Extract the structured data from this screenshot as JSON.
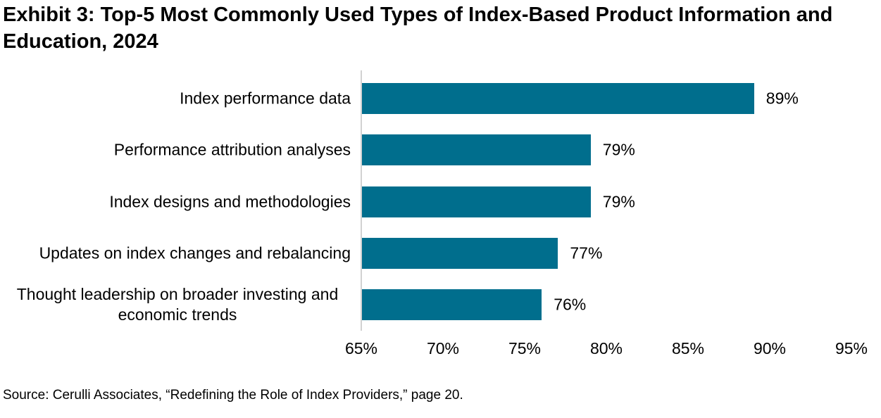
{
  "page": {
    "title": "Exhibit 3: Top-5 Most Commonly Used Types of Index-Based Product Information and Education, 2024",
    "source": "Source: Cerulli Associates, “Redefining the Role of Index Providers,” page 20."
  },
  "colors": {
    "bar": "#006e8d",
    "axis_line": "#d2d2d2",
    "text": "#000000",
    "background": "#ffffff"
  },
  "chart_data": {
    "type": "bar",
    "orientation": "horizontal",
    "title": "Exhibit 3: Top-5 Most Commonly Used Types of Index-Based Product Information and Education, 2024",
    "categories": [
      "Index performance data",
      "Performance attribution analyses",
      "Index designs and methodologies",
      "Updates on index changes and rebalancing",
      "Thought leadership on broader investing and economic trends"
    ],
    "values": [
      89,
      79,
      79,
      77,
      76
    ],
    "value_labels": [
      "89%",
      "79%",
      "79%",
      "77%",
      "76%"
    ],
    "xlabel": "",
    "ylabel": "",
    "xlim": [
      65,
      95
    ],
    "x_tick_values": [
      65,
      70,
      75,
      80,
      85,
      90,
      95
    ],
    "x_tick_labels": [
      "65%",
      "70%",
      "75%",
      "80%",
      "85%",
      "90%",
      "95%"
    ],
    "grid": false,
    "legend": "none",
    "bar_color": "#006e8d"
  }
}
